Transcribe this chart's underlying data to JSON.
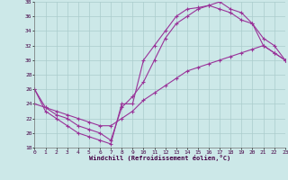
{
  "bg_color": "#cce8e8",
  "grid_color": "#aacccc",
  "line_color": "#993399",
  "xlabel": "Windchill (Refroidissement éolien,°C)",
  "xlim": [
    0,
    23
  ],
  "ylim": [
    18,
    38
  ],
  "yticks": [
    18,
    20,
    22,
    24,
    26,
    28,
    30,
    32,
    34,
    36,
    38
  ],
  "xticks": [
    0,
    1,
    2,
    3,
    4,
    5,
    6,
    7,
    8,
    9,
    10,
    11,
    12,
    13,
    14,
    15,
    16,
    17,
    18,
    19,
    20,
    21,
    22,
    23
  ],
  "series": [
    {
      "x": [
        0,
        1,
        2,
        3,
        4,
        5,
        6,
        7,
        8,
        9,
        10,
        11,
        12,
        13,
        14,
        15,
        16,
        17,
        18,
        19,
        20,
        21,
        22,
        23
      ],
      "y": [
        26,
        23,
        22,
        21,
        20,
        19.5,
        19,
        18.5,
        24,
        24,
        30,
        32,
        34,
        36,
        37,
        37.2,
        37.5,
        38,
        37,
        36.5,
        35,
        32,
        31,
        30
      ]
    },
    {
      "x": [
        0,
        1,
        2,
        3,
        4,
        5,
        6,
        7,
        8,
        9,
        10,
        11,
        12,
        13,
        14,
        15,
        16,
        17,
        18,
        19,
        20,
        21,
        22,
        23
      ],
      "y": [
        26,
        23.5,
        22.5,
        22,
        21,
        20.5,
        20,
        19,
        23.5,
        25,
        27,
        30,
        33,
        35,
        36,
        37,
        37.5,
        37,
        36.5,
        35.5,
        35,
        33,
        32,
        30
      ]
    },
    {
      "x": [
        0,
        1,
        2,
        3,
        4,
        5,
        6,
        7,
        8,
        9,
        10,
        11,
        12,
        13,
        14,
        15,
        16,
        17,
        18,
        19,
        20,
        21,
        22,
        23
      ],
      "y": [
        24,
        23.5,
        23,
        22.5,
        22,
        21.5,
        21,
        21,
        22,
        23,
        24.5,
        25.5,
        26.5,
        27.5,
        28.5,
        29,
        29.5,
        30,
        30.5,
        31,
        31.5,
        32,
        31,
        30
      ]
    }
  ]
}
